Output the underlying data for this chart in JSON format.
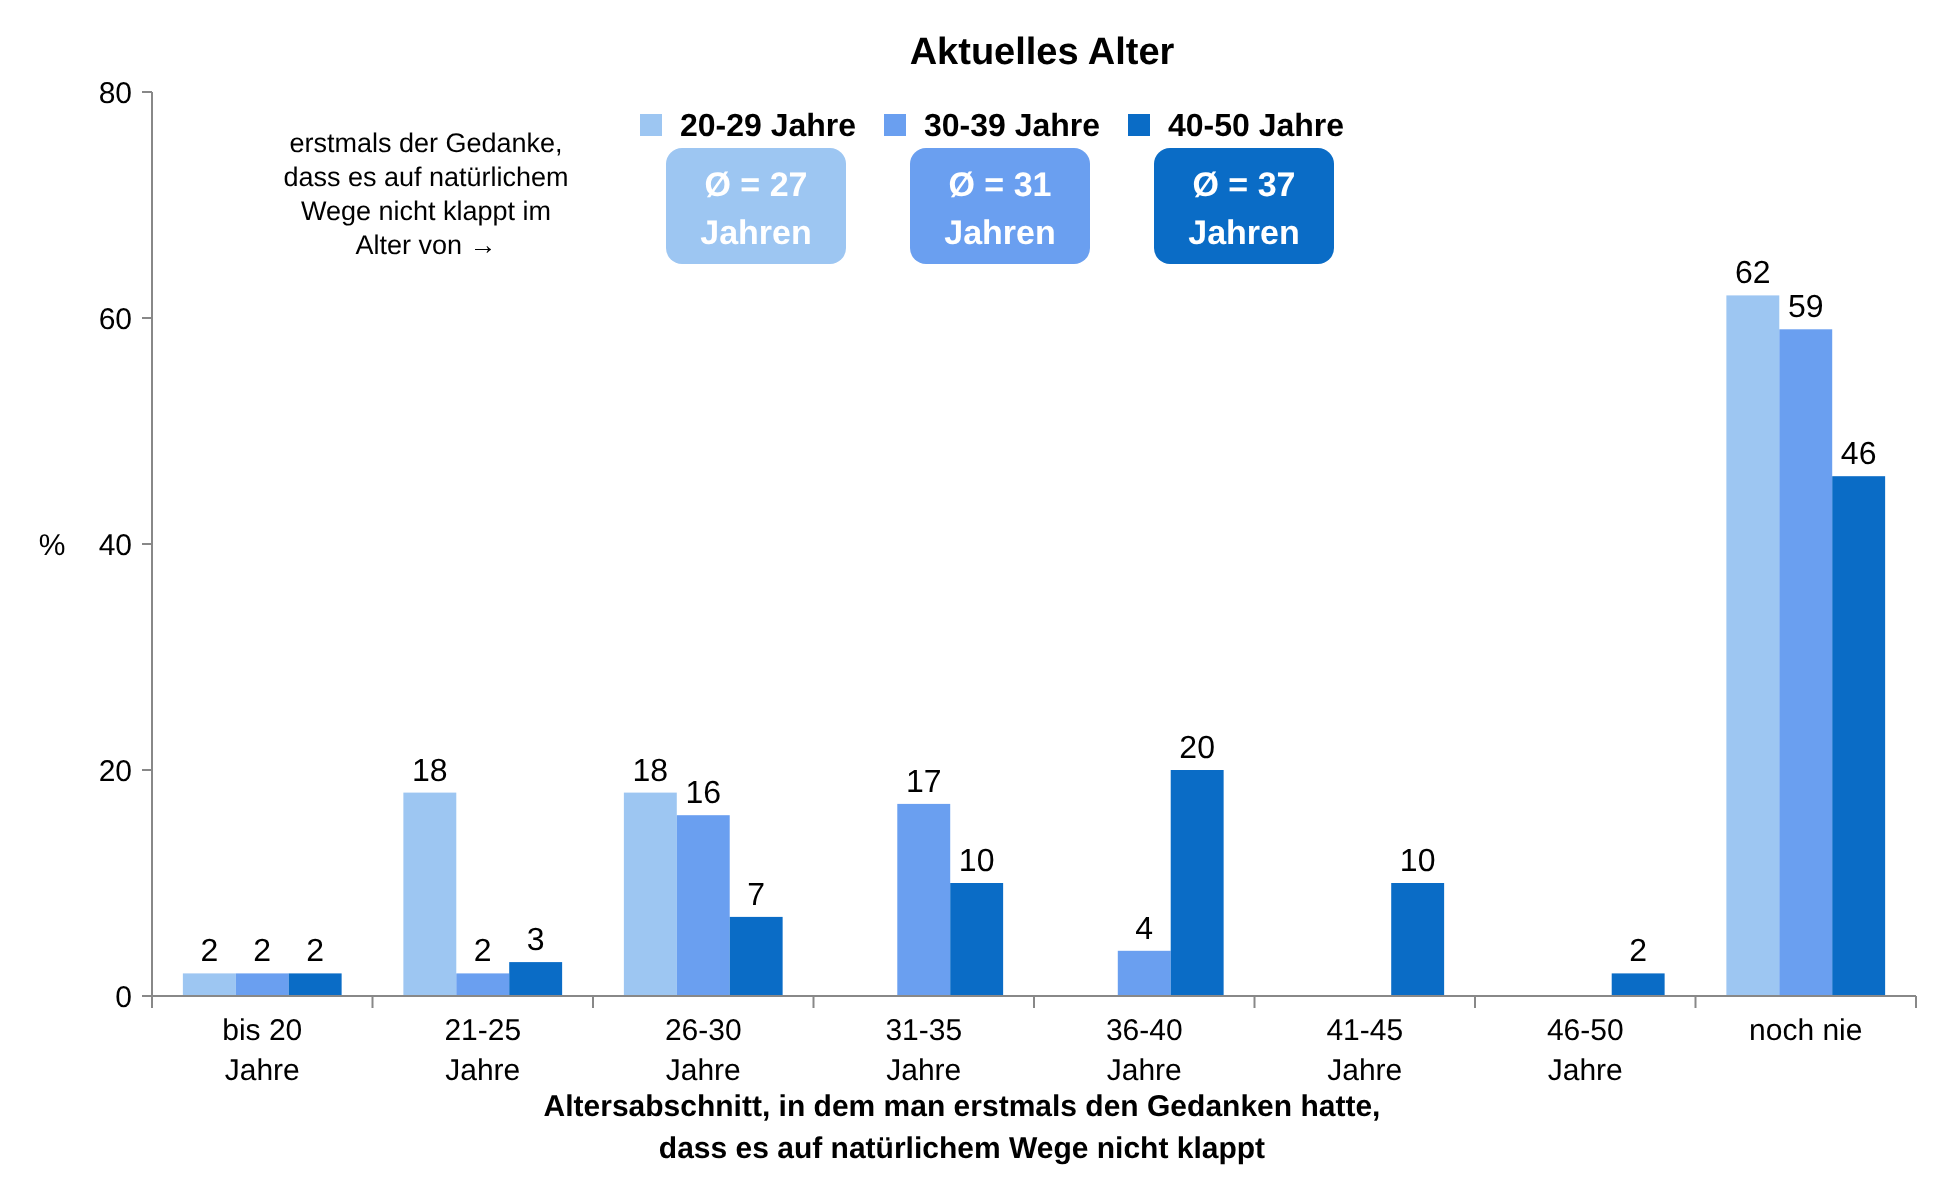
{
  "chart_data": {
    "type": "bar",
    "title": "Aktuelles Alter",
    "ylabel": "%",
    "xlabel": "Altersabschnitt, in dem man erstmals den Gedanken hatte, dass es auf natürlichem Wege nicht klappt",
    "categories": [
      "bis 20 Jahre",
      "21-25 Jahre",
      "26-30 Jahre",
      "31-35 Jahre",
      "36-40 Jahre",
      "41-45 Jahre",
      "46-50 Jahre",
      "noch nie"
    ],
    "series": [
      {
        "name": "20-29 Jahre",
        "color": "#9dc6f2",
        "values": [
          2,
          18,
          18,
          null,
          null,
          null,
          null,
          62
        ]
      },
      {
        "name": "30-39 Jahre",
        "color": "#6a9ff0",
        "values": [
          2,
          2,
          16,
          17,
          4,
          null,
          null,
          59
        ]
      },
      {
        "name": "40-50 Jahre",
        "color": "#0a6cc6",
        "values": [
          2,
          3,
          7,
          10,
          20,
          10,
          2,
          46
        ]
      }
    ],
    "annotations": [
      "erstmals der Gedanke, dass es auf natürlichem Wege nicht klappt im Alter von →",
      "Ø = 27 Jahren",
      "Ø = 31 Jahren",
      "Ø = 37 Jahren"
    ],
    "ylim": [
      0,
      80
    ],
    "yticks": [
      0,
      20,
      40,
      60,
      80
    ],
    "grid": false,
    "legend": "top",
    "data_labels": true
  }
}
